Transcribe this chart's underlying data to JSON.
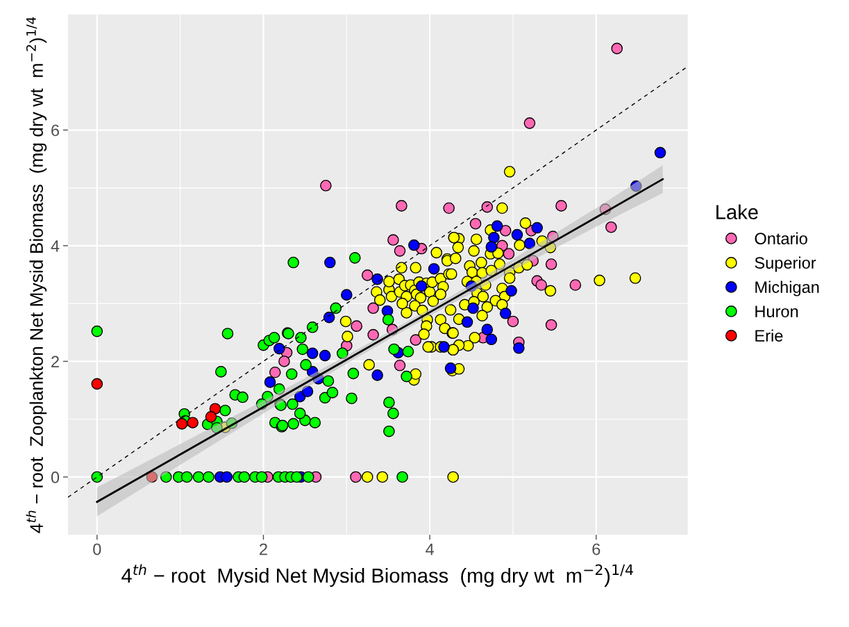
{
  "chart_data": {
    "type": "scatter",
    "xlabel": "4$^{th}$ − root  Mysid Net Mysid Biomass  (mg dry wt  m$^{−2}$)$^{1/4}$",
    "ylabel": "4$^{th}$ − root  Zooplankton Net Mysid Biomass  (mg dry wt  m$^{−2}$)$^{1/4}$",
    "legend_title": "Lake",
    "legend": "right",
    "grid": true,
    "marker": "circle",
    "xlim": [
      -0.35,
      7.1
    ],
    "ylim": [
      -1.0,
      8.0
    ],
    "xticks": [
      0,
      2,
      4,
      6
    ],
    "yticks": [
      0,
      2,
      4,
      6
    ],
    "series": [
      {
        "type": "line",
        "line_style": "dashed",
        "marker": "none",
        "color": "#000000",
        "x": [
          -0.35,
          7.1
        ],
        "values": [
          -0.35,
          7.1
        ]
      },
      {
        "type": "line",
        "line_style": "solid",
        "marker": "none",
        "color": "#000000",
        "x": [
          0,
          1,
          2,
          3,
          4,
          5,
          6,
          6.8
        ],
        "values": [
          -0.43,
          0.39,
          1.21,
          2.03,
          2.85,
          3.67,
          4.49,
          5.15
        ],
        "lower": [
          -0.68,
          0.21,
          1.1,
          1.96,
          2.79,
          3.57,
          4.33,
          4.91
        ],
        "upper": [
          -0.18,
          0.57,
          1.32,
          2.1,
          2.91,
          3.77,
          4.65,
          5.39
        ]
      },
      {
        "name": "Ontario",
        "color": "#ff69b4",
        "x": [
          2.75,
          3.66,
          4.23,
          4.69,
          5.58,
          6.18,
          6.11,
          6.25,
          5.2,
          3.56,
          3.64,
          3.25,
          3.32,
          3.32,
          3.12,
          3.0,
          2.28,
          2.25,
          2.14,
          3.64,
          3.83,
          4.55,
          5.22,
          4.91,
          5.48,
          4.95,
          4.87,
          5.24,
          5.46,
          5.29,
          5.34,
          5.75,
          5.0,
          5.46,
          4.64,
          5.07,
          2.05,
          2.63,
          3.11,
          3.9,
          3.55
        ],
        "values": [
          5.04,
          4.69,
          4.65,
          4.67,
          4.69,
          4.32,
          4.63,
          7.41,
          6.12,
          4.1,
          3.91,
          3.49,
          2.92,
          2.46,
          2.61,
          2.27,
          2.15,
          2.0,
          1.81,
          1.93,
          2.37,
          4.38,
          4.26,
          4.26,
          4.16,
          3.86,
          4.0,
          3.74,
          3.68,
          3.39,
          3.32,
          3.32,
          2.69,
          2.63,
          2.41,
          2.33,
          0,
          0,
          0,
          3.95,
          2.55
        ]
      },
      {
        "name": "Superior",
        "color": "#ffff00",
        "x": [
          3.36,
          3.4,
          3.51,
          3.54,
          3.63,
          3.64,
          3.7,
          3.72,
          3.77,
          3.82,
          3.84,
          3.87,
          3.89,
          3.96,
          4.0,
          4.03,
          4.04,
          4.13,
          4.16,
          4.13,
          4.23,
          4.21,
          3.72,
          3.82,
          3.91,
          3.97,
          3.96,
          4.13,
          3.93,
          4.02,
          4.18,
          4.27,
          4.13,
          3.67,
          3.51,
          2.99,
          3.01,
          3.27,
          3.81,
          3.83,
          4.27,
          3.66,
          3.83,
          4.08,
          4.29,
          4.35,
          4.96,
          4.87,
          6.47,
          6.04,
          5.15,
          4.73,
          4.56,
          4.29,
          5.08,
          5.35,
          5.45,
          4.34,
          4.53,
          4.73,
          4.82,
          4.21,
          4.31,
          4.62,
          4.84,
          4.48,
          4.26,
          4.51,
          4.63,
          4.74,
          4.96,
          5.07,
          5.17,
          4.96,
          5.45,
          4.45,
          4.56,
          4.67,
          4.87,
          4.9,
          4.57,
          4.64,
          4.79,
          4.42,
          4.53,
          4.69,
          4.87,
          4.25,
          4.35,
          4.63,
          4.54,
          4.46,
          4.35,
          4.28,
          4.28,
          4.35,
          3.25,
          3.43,
          4.28,
          1.54,
          3.98,
          4.28
        ],
        "values": [
          3.2,
          3.06,
          3.24,
          3.12,
          3.42,
          3.2,
          3.31,
          3.12,
          3.32,
          3.23,
          3.16,
          3.37,
          3.1,
          3.35,
          3.2,
          3.37,
          3.04,
          3.43,
          3.29,
          3.16,
          3.51,
          3.77,
          2.84,
          2.96,
          2.88,
          2.72,
          2.61,
          2.72,
          2.47,
          2.25,
          2.57,
          2.49,
          2.25,
          3.0,
          3.38,
          2.69,
          2.43,
          1.94,
          1.68,
          1.78,
          1.84,
          3.62,
          3.62,
          3.88,
          4.14,
          4.12,
          5.28,
          4.65,
          3.44,
          3.4,
          4.39,
          4.27,
          4.11,
          4.14,
          4.01,
          4.08,
          3.97,
          3.97,
          3.91,
          3.86,
          3.87,
          3.74,
          3.78,
          3.71,
          3.68,
          3.65,
          3.51,
          3.54,
          3.53,
          3.57,
          3.54,
          3.62,
          3.67,
          3.44,
          3.22,
          3.38,
          3.38,
          3.32,
          3.26,
          3.12,
          3.18,
          3.12,
          3.05,
          2.98,
          3.03,
          2.94,
          2.98,
          2.89,
          2.73,
          2.79,
          2.41,
          2.27,
          2.28,
          2.2,
          2.49,
          1.87,
          0,
          0,
          0,
          0.86,
          2.25,
          2.2
        ]
      },
      {
        "name": "Michigan",
        "color": "#0000ff",
        "x": [
          6.77,
          6.48,
          3.81,
          2.8,
          3.37,
          3.0,
          2.79,
          2.19,
          2.08,
          2.59,
          2.74,
          2.44,
          2.53,
          2.59,
          2.66,
          3.37,
          3.62,
          4.17,
          5.29,
          4.81,
          5.05,
          4.77,
          5.2,
          4.74,
          4.98,
          4.52,
          4.45,
          4.91,
          4.69,
          4.74,
          5.07,
          4.25,
          3.49,
          1.48,
          1.56,
          2.45,
          4.05,
          3.9,
          4.5
        ],
        "values": [
          5.61,
          5.03,
          4.01,
          3.71,
          3.42,
          3.15,
          2.76,
          2.22,
          1.64,
          2.14,
          2.1,
          1.39,
          1.48,
          1.82,
          1.7,
          1.76,
          2.15,
          2.25,
          4.31,
          4.34,
          4.19,
          4.14,
          4.04,
          3.98,
          3.22,
          2.92,
          2.68,
          2.83,
          2.55,
          2.38,
          2.23,
          1.88,
          2.87,
          0,
          0,
          0,
          3.6,
          3.3,
          3.3
        ]
      },
      {
        "name": "Huron",
        "color": "#00ff00",
        "x": [
          0,
          0,
          1.57,
          1.49,
          2.0,
          2.07,
          2.13,
          2.29,
          2.19,
          1.66,
          1.75,
          2.05,
          1.98,
          2.2,
          2.14,
          2.22,
          1.05,
          1.06,
          1.54,
          1.33,
          1.44,
          1.44,
          1.62,
          2.36,
          2.87,
          2.59,
          2.3,
          2.45,
          3.1,
          3.5,
          3.08,
          3.06,
          3.51,
          3.56,
          3.51,
          3.72,
          2.74,
          2.83,
          2.78,
          2.62,
          2.36,
          2.23,
          2.5,
          2.44,
          2.35,
          2.21,
          2.47,
          2.51,
          2.34,
          2.95,
          3.57,
          3.74,
          0.83,
          0.98,
          1.08,
          1.22,
          1.34,
          1.7,
          1.77,
          1.9,
          1.98,
          2.18,
          2.26,
          2.33,
          2.4,
          2.54,
          3.67
        ],
        "values": [
          2.52,
          0,
          2.48,
          1.82,
          2.28,
          2.36,
          2.41,
          2.49,
          1.52,
          1.42,
          1.38,
          1.39,
          1.26,
          1.26,
          0.94,
          0.87,
          1.09,
          0.97,
          1.15,
          0.91,
          0.96,
          0.85,
          0.93,
          3.71,
          2.92,
          2.59,
          2.48,
          2.41,
          3.79,
          2.72,
          1.79,
          1.36,
          1.29,
          1.1,
          0.79,
          1.74,
          1.37,
          1.46,
          1.66,
          0.94,
          0.92,
          0.89,
          0.98,
          1.1,
          1.26,
          1.24,
          2.21,
          1.94,
          1.78,
          2.14,
          2.21,
          2.17,
          0,
          0,
          0,
          0,
          0,
          0,
          0,
          0,
          0,
          0,
          0,
          0,
          0,
          0,
          0
        ]
      },
      {
        "name": "Erie",
        "color": "#ff0000",
        "x": [
          0,
          0.66,
          1.02,
          1.15,
          1.42,
          1.37
        ],
        "values": [
          1.61,
          0,
          0.92,
          0.94,
          1.18,
          1.04
        ]
      }
    ]
  }
}
